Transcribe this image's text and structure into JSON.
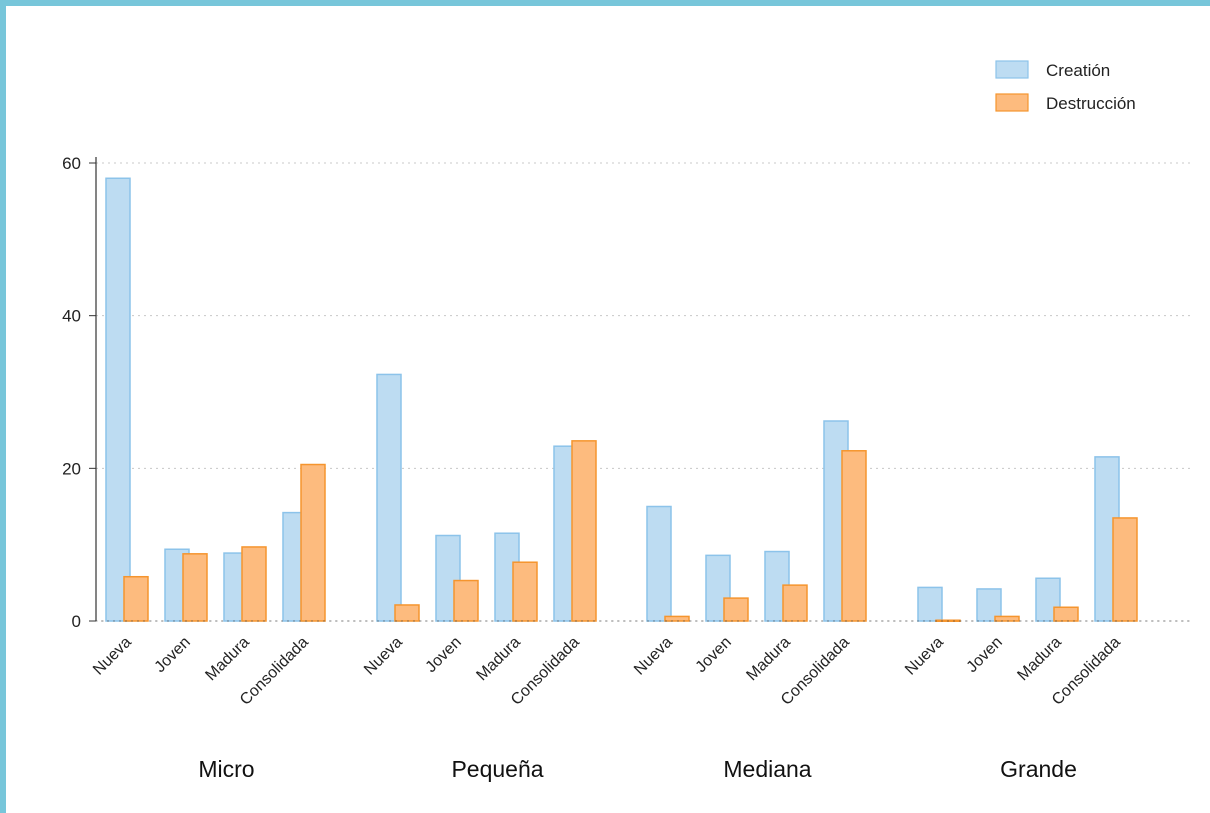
{
  "chart_data": {
    "type": "bar",
    "groups": [
      "Micro",
      "Pequeña",
      "Mediana",
      "Grande"
    ],
    "categories": [
      "Nueva",
      "Joven",
      "Madura",
      "Consolidada"
    ],
    "series": [
      {
        "name": "Creatión",
        "color": "#bddcf2",
        "stroke": "#8cc3ea",
        "values": [
          [
            58.0,
            9.4,
            8.9,
            14.2
          ],
          [
            32.3,
            11.2,
            11.5,
            22.9
          ],
          [
            15.0,
            8.6,
            9.1,
            26.2
          ],
          [
            4.4,
            4.2,
            5.6,
            21.5
          ]
        ]
      },
      {
        "name": "Destrucción",
        "color": "#fdbb7e",
        "stroke": "#f5952e",
        "values": [
          [
            5.8,
            8.8,
            9.7,
            20.5
          ],
          [
            2.1,
            5.3,
            7.7,
            23.6
          ],
          [
            0.6,
            3.0,
            4.7,
            22.3
          ],
          [
            0.1,
            0.6,
            1.8,
            13.5
          ]
        ]
      }
    ],
    "yticks": [
      0,
      20,
      40,
      60
    ],
    "ylim": [
      0,
      60
    ],
    "grid": true,
    "legend": "top-right"
  }
}
